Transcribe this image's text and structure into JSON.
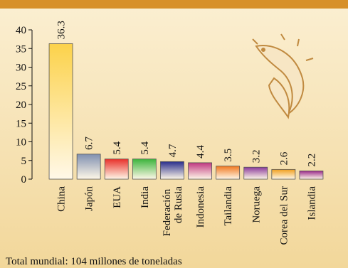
{
  "chart_data": {
    "type": "bar",
    "categories": [
      "China",
      "Japón",
      "EUA",
      "India",
      "Federación de Rusia",
      "Indonesia",
      "Tailandia",
      "Noruega",
      "Corea del Sur",
      "Islandia"
    ],
    "values": [
      36.3,
      6.7,
      5.4,
      5.4,
      4.7,
      4.4,
      3.5,
      3.2,
      2.6,
      2.2
    ],
    "colors": [
      "#fcd24a",
      "#8090b0",
      "#e8302a",
      "#3cb43c",
      "#2a2e8c",
      "#c03880",
      "#f07820",
      "#8a3a9a",
      "#f0a020",
      "#9a2a8a"
    ],
    "ylim": [
      0,
      40
    ],
    "yticks": [
      0,
      5,
      10,
      15,
      20,
      25,
      30,
      35,
      40
    ],
    "note": "Total mundial: 104 millones de toneladas"
  }
}
